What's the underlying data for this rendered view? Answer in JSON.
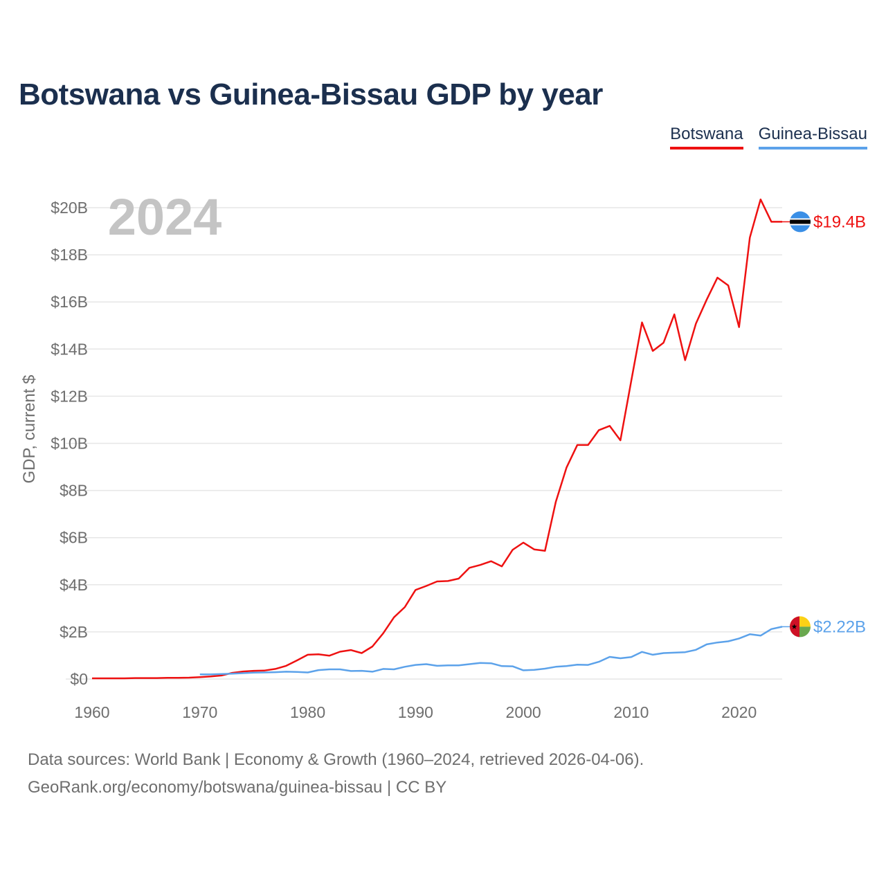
{
  "title": "Botswana vs Guinea-Bissau GDP by year",
  "legend": [
    {
      "label": "Botswana",
      "color": "#ee1111"
    },
    {
      "label": "Guinea-Bissau",
      "color": "#5ca2ea"
    }
  ],
  "sources": {
    "line1": "Data sources: World Bank | Economy & Growth (1960–2024, retrieved 2026-04-06).",
    "line2": "GeoRank.org/economy/botswana/guinea-bissau | CC BY"
  },
  "chart_data": {
    "type": "line",
    "title": "Botswana vs Guinea-Bissau GDP by year",
    "year_label": "2024",
    "xlabel": "",
    "ylabel": "GDP, current $",
    "xlim": [
      1960,
      2024
    ],
    "ylim": [
      0,
      20
    ],
    "y_unit": "billion current US$",
    "grid": true,
    "legend_position": "top-right",
    "x_ticks": [
      1960,
      1970,
      1980,
      1990,
      2000,
      2010,
      2020
    ],
    "y_ticks": [
      {
        "value": 0,
        "label": "$0"
      },
      {
        "value": 2,
        "label": "$2B"
      },
      {
        "value": 4,
        "label": "$4B"
      },
      {
        "value": 6,
        "label": "$6B"
      },
      {
        "value": 8,
        "label": "$8B"
      },
      {
        "value": 10,
        "label": "$10B"
      },
      {
        "value": 12,
        "label": "$12B"
      },
      {
        "value": 14,
        "label": "$14B"
      },
      {
        "value": 16,
        "label": "$16B"
      },
      {
        "value": 18,
        "label": "$18B"
      },
      {
        "value": 20,
        "label": "$20B"
      }
    ],
    "series": [
      {
        "name": "Botswana",
        "color": "#ee1111",
        "end_label": "$19.4B",
        "flag": "botswana-flag-icon",
        "x": [
          1960,
          1961,
          1962,
          1963,
          1964,
          1965,
          1966,
          1967,
          1968,
          1969,
          1970,
          1971,
          1972,
          1973,
          1974,
          1975,
          1976,
          1977,
          1978,
          1979,
          1980,
          1981,
          1982,
          1983,
          1984,
          1985,
          1986,
          1987,
          1988,
          1989,
          1990,
          1991,
          1992,
          1993,
          1994,
          1995,
          1996,
          1997,
          1998,
          1999,
          2000,
          2001,
          2002,
          2003,
          2004,
          2005,
          2006,
          2007,
          2008,
          2009,
          2010,
          2011,
          2012,
          2013,
          2014,
          2015,
          2016,
          2017,
          2018,
          2019,
          2020,
          2021,
          2022,
          2023,
          2024
        ],
        "values": [
          0.03,
          0.03,
          0.03,
          0.03,
          0.04,
          0.04,
          0.04,
          0.05,
          0.05,
          0.06,
          0.08,
          0.11,
          0.15,
          0.26,
          0.32,
          0.35,
          0.36,
          0.43,
          0.56,
          0.79,
          1.03,
          1.05,
          0.99,
          1.16,
          1.23,
          1.1,
          1.38,
          1.94,
          2.62,
          3.05,
          3.78,
          3.95,
          4.14,
          4.16,
          4.26,
          4.72,
          4.84,
          5.0,
          4.78,
          5.48,
          5.79,
          5.5,
          5.44,
          7.51,
          8.97,
          9.93,
          9.93,
          10.56,
          10.74,
          10.13,
          12.64,
          15.13,
          13.92,
          14.27,
          15.47,
          13.53,
          15.08,
          16.1,
          17.03,
          16.7,
          14.93,
          18.73,
          20.35,
          19.4,
          19.4
        ]
      },
      {
        "name": "Guinea-Bissau",
        "color": "#5ca2ea",
        "end_label": "$2.22B",
        "flag": "guinea-bissau-flag-icon",
        "x": [
          1970,
          1971,
          1972,
          1973,
          1974,
          1975,
          1976,
          1977,
          1978,
          1979,
          1980,
          1981,
          1982,
          1983,
          1984,
          1985,
          1986,
          1987,
          1988,
          1989,
          1990,
          1991,
          1992,
          1993,
          1994,
          1995,
          1996,
          1997,
          1998,
          1999,
          2000,
          2001,
          2002,
          2003,
          2004,
          2005,
          2006,
          2007,
          2008,
          2009,
          2010,
          2011,
          2012,
          2013,
          2014,
          2015,
          2016,
          2017,
          2018,
          2019,
          2020,
          2021,
          2022,
          2023,
          2024
        ],
        "values": [
          0.2,
          0.2,
          0.21,
          0.23,
          0.25,
          0.27,
          0.28,
          0.29,
          0.31,
          0.3,
          0.28,
          0.38,
          0.41,
          0.41,
          0.34,
          0.35,
          0.31,
          0.43,
          0.41,
          0.52,
          0.6,
          0.63,
          0.56,
          0.58,
          0.58,
          0.63,
          0.68,
          0.67,
          0.55,
          0.54,
          0.37,
          0.39,
          0.44,
          0.52,
          0.55,
          0.61,
          0.6,
          0.73,
          0.94,
          0.88,
          0.93,
          1.15,
          1.03,
          1.1,
          1.12,
          1.14,
          1.24,
          1.47,
          1.55,
          1.6,
          1.72,
          1.9,
          1.84,
          2.12,
          2.22
        ]
      }
    ]
  }
}
